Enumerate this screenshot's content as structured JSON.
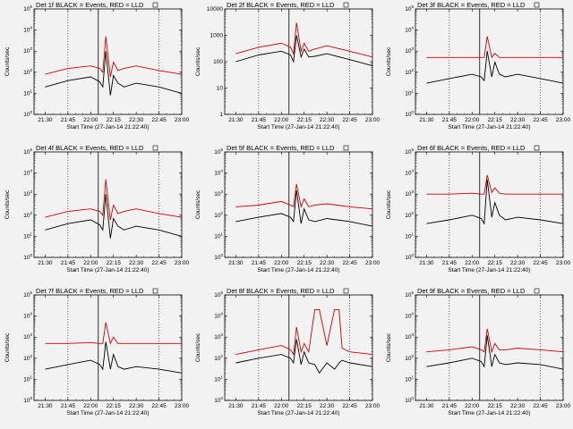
{
  "title_suffix": "BLACK = Events, RED = LLD",
  "ylabel": "Counts/sec",
  "xlabel": "Start Time (27-Jan-14 21:22:40)",
  "x_ticks": [
    "21:30",
    "21:45",
    "22:00",
    "22:15",
    "22:30",
    "22:45",
    "23:00"
  ],
  "colors": {
    "events": "#000000",
    "lld": "#cc0000",
    "background": "#f2f2f2"
  },
  "chart_data": [
    {
      "type": "line",
      "title": "Det 1f",
      "y_scale": "log",
      "ylim_exp": [
        0,
        5
      ],
      "x_range": [
        "21:22:40",
        "23:00"
      ],
      "x": [
        "21:30",
        "21:45",
        "22:00",
        "22:06",
        "22:08",
        "22:10",
        "22:13",
        "22:15",
        "22:18",
        "22:22",
        "22:30",
        "22:45",
        "23:00"
      ],
      "series": [
        {
          "name": "Events",
          "values": [
            20,
            40,
            60,
            35,
            20,
            1000,
            8,
            70,
            30,
            20,
            30,
            20,
            10
          ]
        },
        {
          "name": "LLD",
          "values": [
            80,
            150,
            200,
            150,
            100,
            5000,
            60,
            300,
            120,
            150,
            200,
            120,
            80
          ]
        }
      ]
    },
    {
      "type": "line",
      "title": "Det 2f",
      "y_scale": "log",
      "ylim": [
        1,
        10000
      ],
      "x_range": [
        "21:22:40",
        "23:00"
      ],
      "x": [
        "21:30",
        "21:45",
        "22:00",
        "22:06",
        "22:08",
        "22:10",
        "22:13",
        "22:15",
        "22:18",
        "22:22",
        "22:30",
        "22:45",
        "23:00"
      ],
      "series": [
        {
          "name": "Events",
          "values": [
            100,
            180,
            250,
            180,
            100,
            1000,
            150,
            300,
            150,
            160,
            200,
            120,
            70
          ]
        },
        {
          "name": "LLD",
          "values": [
            200,
            350,
            500,
            350,
            200,
            3000,
            250,
            500,
            250,
            300,
            400,
            250,
            150
          ]
        }
      ]
    },
    {
      "type": "line",
      "title": "Det 3f",
      "y_scale": "log",
      "ylim_exp": [
        0,
        5
      ],
      "x_range": [
        "21:22:40",
        "23:00"
      ],
      "x": [
        "21:30",
        "21:45",
        "22:00",
        "22:06",
        "22:08",
        "22:10",
        "22:13",
        "22:15",
        "22:18",
        "22:22",
        "22:30",
        "22:45",
        "23:00"
      ],
      "series": [
        {
          "name": "Events",
          "values": [
            30,
            50,
            80,
            60,
            40,
            1000,
            60,
            300,
            80,
            60,
            80,
            50,
            30
          ]
        },
        {
          "name": "LLD",
          "values": [
            500,
            500,
            500,
            500,
            500,
            5000,
            500,
            800,
            500,
            500,
            500,
            500,
            500
          ]
        }
      ]
    },
    {
      "type": "line",
      "title": "Det 4f",
      "y_scale": "log",
      "ylim_exp": [
        0,
        5
      ],
      "x_range": [
        "21:22:40",
        "23:00"
      ],
      "x": [
        "21:30",
        "21:45",
        "22:00",
        "22:06",
        "22:08",
        "22:10",
        "22:13",
        "22:15",
        "22:18",
        "22:22",
        "22:30",
        "22:45",
        "23:00"
      ],
      "series": [
        {
          "name": "Events",
          "values": [
            20,
            40,
            60,
            35,
            20,
            1000,
            8,
            70,
            30,
            20,
            30,
            20,
            10
          ]
        },
        {
          "name": "LLD",
          "values": [
            80,
            150,
            200,
            150,
            100,
            5000,
            60,
            300,
            120,
            150,
            200,
            120,
            80
          ]
        }
      ]
    },
    {
      "type": "line",
      "title": "Det 5f",
      "y_scale": "log",
      "ylim_exp": [
        0,
        5
      ],
      "x_range": [
        "21:22:40",
        "23:00"
      ],
      "x": [
        "21:30",
        "21:45",
        "22:00",
        "22:06",
        "22:08",
        "22:10",
        "22:13",
        "22:15",
        "22:18",
        "22:22",
        "22:30",
        "22:45",
        "23:00"
      ],
      "series": [
        {
          "name": "Events",
          "values": [
            50,
            80,
            120,
            80,
            50,
            1500,
            40,
            200,
            60,
            50,
            70,
            50,
            30
          ]
        },
        {
          "name": "LLD",
          "values": [
            250,
            300,
            450,
            300,
            250,
            3000,
            250,
            600,
            250,
            300,
            350,
            250,
            200
          ]
        }
      ]
    },
    {
      "type": "line",
      "title": "Det 6f",
      "y_scale": "log",
      "ylim_exp": [
        0,
        5
      ],
      "x_range": [
        "21:22:40",
        "23:00"
      ],
      "x": [
        "21:30",
        "21:45",
        "22:00",
        "22:06",
        "22:08",
        "22:10",
        "22:13",
        "22:15",
        "22:18",
        "22:22",
        "22:30",
        "22:45",
        "23:00"
      ],
      "series": [
        {
          "name": "Events",
          "values": [
            40,
            60,
            100,
            70,
            40,
            5000,
            80,
            400,
            100,
            60,
            80,
            60,
            40
          ]
        },
        {
          "name": "LLD",
          "values": [
            1000,
            1000,
            1100,
            1000,
            1000,
            8000,
            1200,
            2000,
            1100,
            1000,
            1000,
            1000,
            1000
          ]
        }
      ]
    },
    {
      "type": "line",
      "title": "Det 7f",
      "y_scale": "log",
      "ylim_exp": [
        0,
        5
      ],
      "x_range": [
        "21:22:40",
        "23:00"
      ],
      "x": [
        "21:30",
        "21:45",
        "22:00",
        "22:06",
        "22:08",
        "22:10",
        "22:13",
        "22:15",
        "22:18",
        "22:22",
        "22:30",
        "22:45",
        "23:00"
      ],
      "series": [
        {
          "name": "Events",
          "values": [
            30,
            50,
            80,
            50,
            30,
            600,
            30,
            150,
            40,
            30,
            40,
            30,
            20
          ]
        },
        {
          "name": "LLD",
          "values": [
            500,
            500,
            550,
            500,
            500,
            5000,
            500,
            1000,
            500,
            500,
            500,
            500,
            500
          ]
        }
      ]
    },
    {
      "type": "line",
      "title": "Det 8f",
      "y_scale": "log",
      "ylim_exp": [
        0,
        5
      ],
      "x_range": [
        "21:22:40",
        "23:00"
      ],
      "x": [
        "21:30",
        "21:45",
        "22:00",
        "22:06",
        "22:08",
        "22:10",
        "22:13",
        "22:15",
        "22:18",
        "22:22",
        "22:25",
        "22:30",
        "22:35",
        "22:38",
        "22:40",
        "22:45",
        "23:00"
      ],
      "series": [
        {
          "name": "Events",
          "values": [
            60,
            100,
            150,
            100,
            60,
            800,
            50,
            200,
            60,
            50,
            20,
            60,
            30,
            60,
            80,
            60,
            40
          ]
        },
        {
          "name": "LLD",
          "values": [
            150,
            250,
            400,
            250,
            150,
            3000,
            200,
            500,
            200,
            20000,
            20000,
            400,
            20000,
            20000,
            300,
            200,
            150
          ]
        }
      ]
    },
    {
      "type": "line",
      "title": "Det 9f",
      "y_scale": "log",
      "ylim_exp": [
        0,
        5
      ],
      "x_range": [
        "21:22:40",
        "23:00"
      ],
      "x": [
        "21:30",
        "21:45",
        "22:00",
        "22:06",
        "22:08",
        "22:10",
        "22:13",
        "22:15",
        "22:18",
        "22:22",
        "22:30",
        "22:45",
        "23:00"
      ],
      "series": [
        {
          "name": "Events",
          "values": [
            40,
            60,
            100,
            70,
            40,
            1200,
            40,
            150,
            60,
            50,
            60,
            50,
            30
          ]
        },
        {
          "name": "LLD",
          "values": [
            200,
            250,
            350,
            250,
            200,
            2500,
            200,
            500,
            250,
            250,
            300,
            250,
            200
          ]
        }
      ]
    }
  ]
}
